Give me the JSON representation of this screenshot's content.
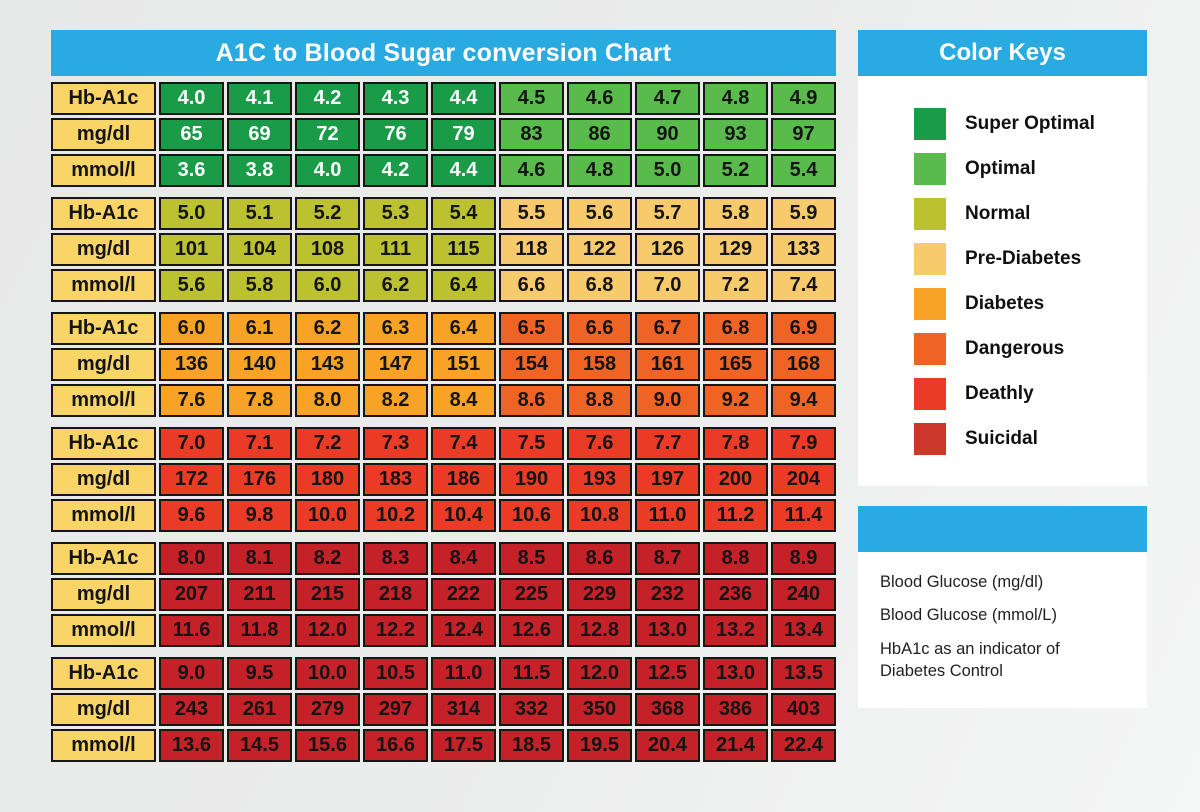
{
  "title": "A1C to Blood Sugar conversion Chart",
  "colors": {
    "accent_blue": "#29aae1",
    "label_yellow": "#f8d566",
    "cell_border": "#161616",
    "super_optimal": "#199b48",
    "optimal": "#5abb4d",
    "normal": "#bcc22f",
    "pre_diabetes": "#f7ca6b",
    "diabetes": "#f8a226",
    "dangerous": "#ef6425",
    "deathly": "#e93b26",
    "suicidal": "#c52128",
    "suicidal_swatch": "#cb3728"
  },
  "chart_data": {
    "type": "table",
    "title": "A1C to Blood Sugar conversion Chart",
    "row_labels": [
      "Hb-A1c",
      "mg/dl",
      "mmol/l"
    ],
    "blocks": [
      {
        "first_zone": "super_optimal",
        "second_zone": "optimal",
        "first_text": "#ffffff",
        "second_text": "#141414",
        "rows": [
          [
            "4.0",
            "4.1",
            "4.2",
            "4.3",
            "4.4",
            "4.5",
            "4.6",
            "4.7",
            "4.8",
            "4.9"
          ],
          [
            "65",
            "69",
            "72",
            "76",
            "79",
            "83",
            "86",
            "90",
            "93",
            "97"
          ],
          [
            "3.6",
            "3.8",
            "4.0",
            "4.2",
            "4.4",
            "4.6",
            "4.8",
            "5.0",
            "5.2",
            "5.4"
          ]
        ]
      },
      {
        "first_zone": "normal",
        "second_zone": "pre_diabetes",
        "first_text": "#141414",
        "second_text": "#141414",
        "rows": [
          [
            "5.0",
            "5.1",
            "5.2",
            "5.3",
            "5.4",
            "5.5",
            "5.6",
            "5.7",
            "5.8",
            "5.9"
          ],
          [
            "101",
            "104",
            "108",
            "111",
            "115",
            "118",
            "122",
            "126",
            "129",
            "133"
          ],
          [
            "5.6",
            "5.8",
            "6.0",
            "6.2",
            "6.4",
            "6.6",
            "6.8",
            "7.0",
            "7.2",
            "7.4"
          ]
        ]
      },
      {
        "first_zone": "diabetes",
        "second_zone": "dangerous",
        "first_text": "#141414",
        "second_text": "#141414",
        "rows": [
          [
            "6.0",
            "6.1",
            "6.2",
            "6.3",
            "6.4",
            "6.5",
            "6.6",
            "6.7",
            "6.8",
            "6.9"
          ],
          [
            "136",
            "140",
            "143",
            "147",
            "151",
            "154",
            "158",
            "161",
            "165",
            "168"
          ],
          [
            "7.6",
            "7.8",
            "8.0",
            "8.2",
            "8.4",
            "8.6",
            "8.8",
            "9.0",
            "9.2",
            "9.4"
          ]
        ]
      },
      {
        "first_zone": "deathly",
        "second_zone": "deathly",
        "first_text": "#141414",
        "second_text": "#141414",
        "rows": [
          [
            "7.0",
            "7.1",
            "7.2",
            "7.3",
            "7.4",
            "7.5",
            "7.6",
            "7.7",
            "7.8",
            "7.9"
          ],
          [
            "172",
            "176",
            "180",
            "183",
            "186",
            "190",
            "193",
            "197",
            "200",
            "204"
          ],
          [
            "9.6",
            "9.8",
            "10.0",
            "10.2",
            "10.4",
            "10.6",
            "10.8",
            "11.0",
            "11.2",
            "11.4"
          ]
        ]
      },
      {
        "first_zone": "suicidal",
        "second_zone": "suicidal",
        "first_text": "#141414",
        "second_text": "#141414",
        "rows": [
          [
            "8.0",
            "8.1",
            "8.2",
            "8.3",
            "8.4",
            "8.5",
            "8.6",
            "8.7",
            "8.8",
            "8.9"
          ],
          [
            "207",
            "211",
            "215",
            "218",
            "222",
            "225",
            "229",
            "232",
            "236",
            "240"
          ],
          [
            "11.6",
            "11.8",
            "12.0",
            "12.2",
            "12.4",
            "12.6",
            "12.8",
            "13.0",
            "13.2",
            "13.4"
          ]
        ]
      },
      {
        "first_zone": "suicidal",
        "second_zone": "suicidal",
        "first_text": "#141414",
        "second_text": "#141414",
        "rows": [
          [
            "9.0",
            "9.5",
            "10.0",
            "10.5",
            "11.0",
            "11.5",
            "12.0",
            "12.5",
            "13.0",
            "13.5"
          ],
          [
            "243",
            "261",
            "279",
            "297",
            "314",
            "332",
            "350",
            "368",
            "386",
            "403"
          ],
          [
            "13.6",
            "14.5",
            "15.6",
            "16.6",
            "17.5",
            "18.5",
            "19.5",
            "20.4",
            "21.4",
            "22.4"
          ]
        ]
      }
    ]
  },
  "color_keys": {
    "title": "Color Keys",
    "items": [
      {
        "label": "Super Optimal",
        "zone": "super_optimal"
      },
      {
        "label": "Optimal",
        "zone": "optimal"
      },
      {
        "label": "Normal",
        "zone": "normal"
      },
      {
        "label": "Pre-Diabetes",
        "zone": "pre_diabetes"
      },
      {
        "label": "Diabetes",
        "zone": "diabetes"
      },
      {
        "label": "Dangerous",
        "zone": "dangerous"
      },
      {
        "label": "Deathly",
        "zone": "deathly"
      },
      {
        "label": "Suicidal",
        "zone": "suicidal_swatch"
      }
    ]
  },
  "notes": {
    "lines": [
      "Blood Glucose (mg/dl)",
      "Blood Glucose (mmol/L)",
      "HbA1c as an indicator of Diabetes Control"
    ]
  }
}
